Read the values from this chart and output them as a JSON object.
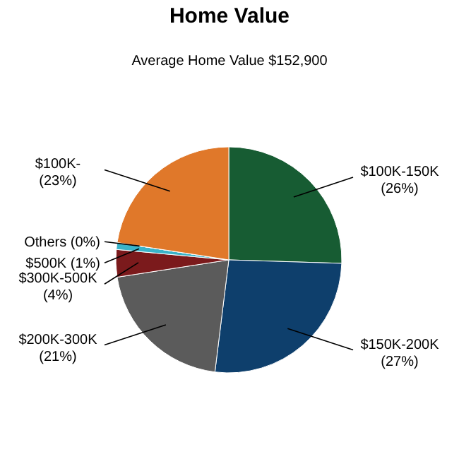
{
  "chart_data": {
    "type": "pie",
    "title": "Home Value",
    "subtitle": "Average Home Value  $152,900",
    "categories": [
      "$100K-150K",
      "$150K-200K",
      "$200K-300K",
      "$300K-500K",
      "$500K",
      "Others",
      "$100K-"
    ],
    "values": [
      26,
      27,
      21,
      4,
      1,
      0,
      23
    ],
    "value_labels": [
      "(26%)",
      "(27%)",
      "(21%)",
      "(4%)",
      "(1%)",
      "(0%)",
      "(23%)"
    ],
    "colors": [
      "#175c33",
      "#0e3f6c",
      "#5b5b5b",
      "#7b1a1c",
      "#3ab3c9",
      "#3d5fa8",
      "#e0782a"
    ]
  }
}
